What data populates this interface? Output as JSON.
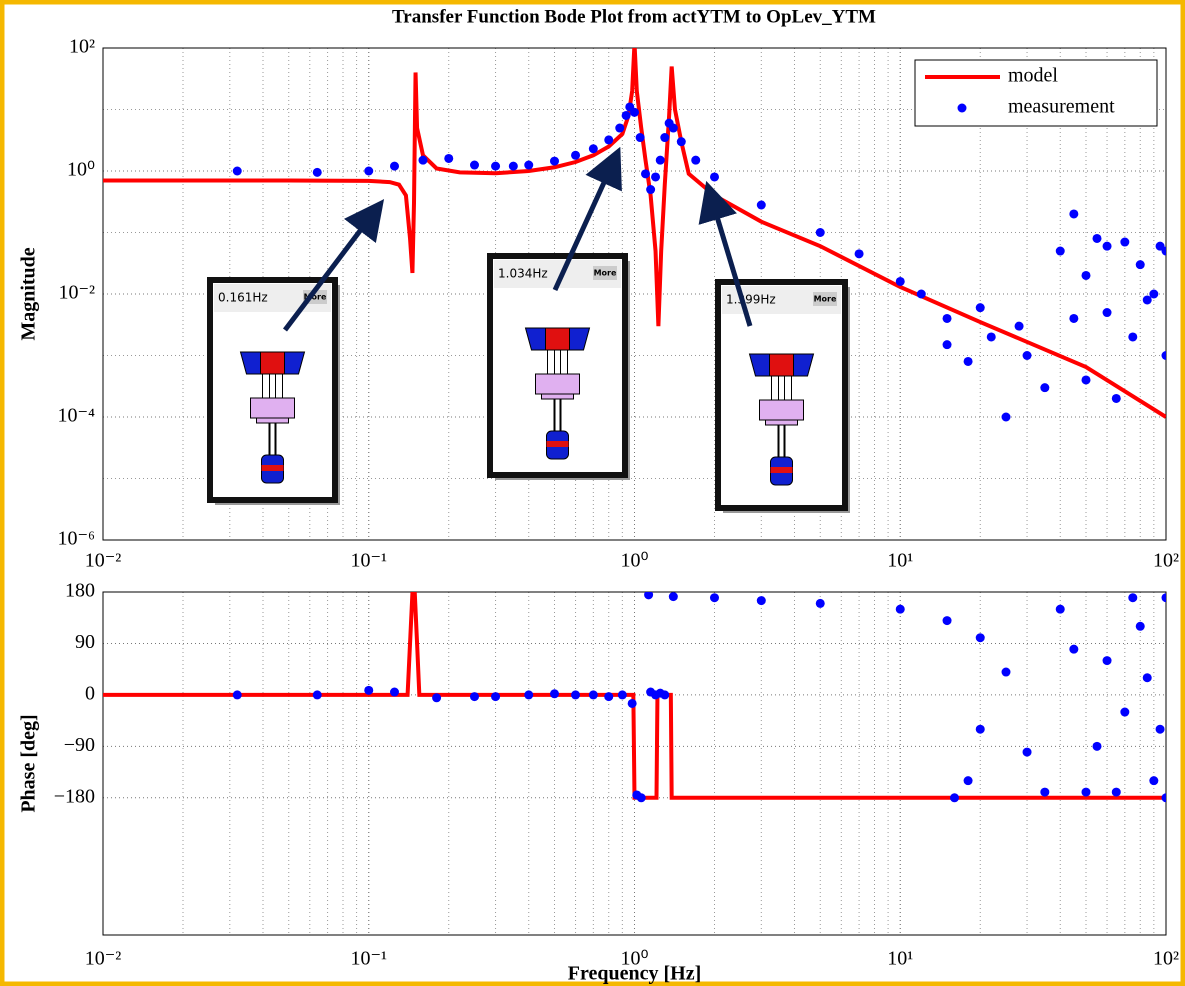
{
  "chart_data": [
    {
      "type": "line",
      "title": "Transfer Function Bode Plot from actYTM to OpLev_YTM",
      "ylabel": "Magnitude",
      "xscale": "log",
      "yscale": "log",
      "grid": true,
      "minor_grid": true,
      "legend": "upper right",
      "xlim": [
        0.01,
        100
      ],
      "ylim": [
        1e-06,
        100
      ],
      "xticks": [
        {
          "value": 0.01,
          "label": "10⁻²"
        },
        {
          "value": 0.1,
          "label": "10⁻¹"
        },
        {
          "value": 1,
          "label": "10⁰"
        },
        {
          "value": 10,
          "label": "10¹"
        },
        {
          "value": 100,
          "label": "10²"
        }
      ],
      "yticks": [
        {
          "value": 100,
          "label": "10²"
        },
        {
          "value": 1,
          "label": "10⁰"
        },
        {
          "value": 0.01,
          "label": "10⁻²"
        },
        {
          "value": 0.0001,
          "label": "10⁻⁴"
        },
        {
          "value": 1e-06,
          "label": "10⁻⁶"
        }
      ],
      "series": [
        {
          "name": "model",
          "color": "#ff0000",
          "style": "line",
          "x": [
            0.01,
            0.05,
            0.1,
            0.12,
            0.13,
            0.138,
            0.143,
            0.146,
            0.148,
            0.15,
            0.152,
            0.16,
            0.18,
            0.22,
            0.3,
            0.4,
            0.5,
            0.6,
            0.7,
            0.8,
            0.9,
            0.95,
            0.98,
            1.0,
            1.02,
            1.06,
            1.1,
            1.15,
            1.2,
            1.23,
            1.26,
            1.3,
            1.35,
            1.38,
            1.42,
            1.5,
            1.6,
            2,
            3,
            5,
            10,
            20,
            50,
            100
          ],
          "values": [
            0.7,
            0.7,
            0.69,
            0.66,
            0.6,
            0.4,
            0.08,
            0.022,
            0.3,
            40,
            5,
            1.8,
            1.1,
            0.95,
            0.92,
            1.0,
            1.15,
            1.4,
            1.8,
            2.5,
            4,
            8,
            20,
            120,
            20,
            5,
            1.5,
            0.4,
            0.05,
            0.003,
            0.05,
            0.6,
            8,
            50,
            10,
            3,
            0.9,
            0.4,
            0.15,
            0.06,
            0.013,
            0.0035,
            0.00065,
            0.0001
          ]
        },
        {
          "name": "measurement",
          "color": "#0000ff",
          "style": "markers",
          "x": [
            0.032,
            0.064,
            0.1,
            0.125,
            0.16,
            0.2,
            0.25,
            0.3,
            0.35,
            0.4,
            0.5,
            0.6,
            0.7,
            0.8,
            0.88,
            0.93,
            0.96,
            1.0,
            1.05,
            1.1,
            1.15,
            1.2,
            1.25,
            1.3,
            1.35,
            1.4,
            1.5,
            1.7,
            2,
            3,
            5,
            7,
            10,
            12,
            15,
            15,
            18,
            20,
            22,
            25,
            28,
            30,
            35,
            40,
            45,
            45,
            50,
            50,
            55,
            60,
            60,
            65,
            70,
            75,
            80,
            85,
            90,
            95,
            100,
            100
          ],
          "values": [
            1.0,
            0.95,
            1.0,
            1.2,
            1.5,
            1.6,
            1.25,
            1.2,
            1.2,
            1.25,
            1.45,
            1.8,
            2.3,
            3.2,
            5,
            8,
            11,
            9,
            3.5,
            0.9,
            0.5,
            0.8,
            1.5,
            3.5,
            6,
            5,
            3,
            1.5,
            0.8,
            0.28,
            0.1,
            0.045,
            0.016,
            0.01,
            0.004,
            0.0015,
            0.0008,
            0.006,
            0.002,
            0.0001,
            0.003,
            0.001,
            0.0003,
            0.05,
            0.2,
            0.004,
            0.02,
            0.0004,
            0.08,
            0.005,
            0.06,
            0.0002,
            0.07,
            0.002,
            0.03,
            0.008,
            0.01,
            0.06,
            0.05,
            0.001
          ]
        }
      ],
      "insets": [
        {
          "label": "0.161Hz",
          "button": "More"
        },
        {
          "label": "1.034Hz",
          "button": "More"
        },
        {
          "label": "1.399Hz",
          "button": "More"
        }
      ]
    },
    {
      "type": "line",
      "xlabel": "Frequency [Hz]",
      "ylabel": "Phase [deg]",
      "xscale": "log",
      "yscale": "linear",
      "grid": true,
      "minor_grid": true,
      "xlim": [
        0.01,
        100
      ],
      "ylim": [
        -420,
        180
      ],
      "xticks": [
        {
          "value": 0.01,
          "label": "10⁻²"
        },
        {
          "value": 0.1,
          "label": "10⁻¹"
        },
        {
          "value": 1,
          "label": "10⁰"
        },
        {
          "value": 10,
          "label": "10¹"
        },
        {
          "value": 100,
          "label": "10²"
        }
      ],
      "yticks": [
        180,
        90,
        0,
        {
          "value": -90,
          "label": "−90"
        },
        {
          "value": -180,
          "label": "−180"
        }
      ],
      "series": [
        {
          "color": "#ff0000",
          "style": "line",
          "x": [
            0.01,
            0.14,
            0.143,
            0.146,
            0.149,
            0.152,
            0.155,
            0.99,
            1.0,
            1.21,
            1.22,
            1.37,
            1.38,
            100
          ],
          "values": [
            0,
            0,
            90,
            178,
            178,
            90,
            0,
            0,
            -180,
            -180,
            0,
            0,
            -180,
            -180
          ]
        },
        {
          "color": "#0000ff",
          "style": "markers",
          "x": [
            0.032,
            0.064,
            0.1,
            0.125,
            0.18,
            0.25,
            0.3,
            0.4,
            0.5,
            0.6,
            0.7,
            0.8,
            0.9,
            0.98,
            1.02,
            1.06,
            1.13,
            1.15,
            1.2,
            1.25,
            1.3,
            1.4,
            2,
            3,
            5,
            10,
            15,
            20,
            16,
            18,
            20,
            25,
            30,
            40,
            50,
            60,
            70,
            80,
            90,
            100,
            35,
            45,
            55,
            65,
            75,
            85,
            95,
            100
          ],
          "values": [
            0,
            0,
            8,
            5,
            -5,
            -3,
            -3,
            0,
            2,
            0,
            0,
            -3,
            0,
            -15,
            -175,
            -180,
            175,
            5,
            0,
            3,
            0,
            172,
            170,
            165,
            160,
            150,
            130,
            100,
            -180,
            -150,
            -60,
            40,
            -100,
            150,
            -170,
            60,
            -30,
            120,
            -150,
            170,
            -170,
            80,
            -90,
            -170,
            170,
            30,
            -60,
            -180
          ]
        }
      ]
    }
  ]
}
